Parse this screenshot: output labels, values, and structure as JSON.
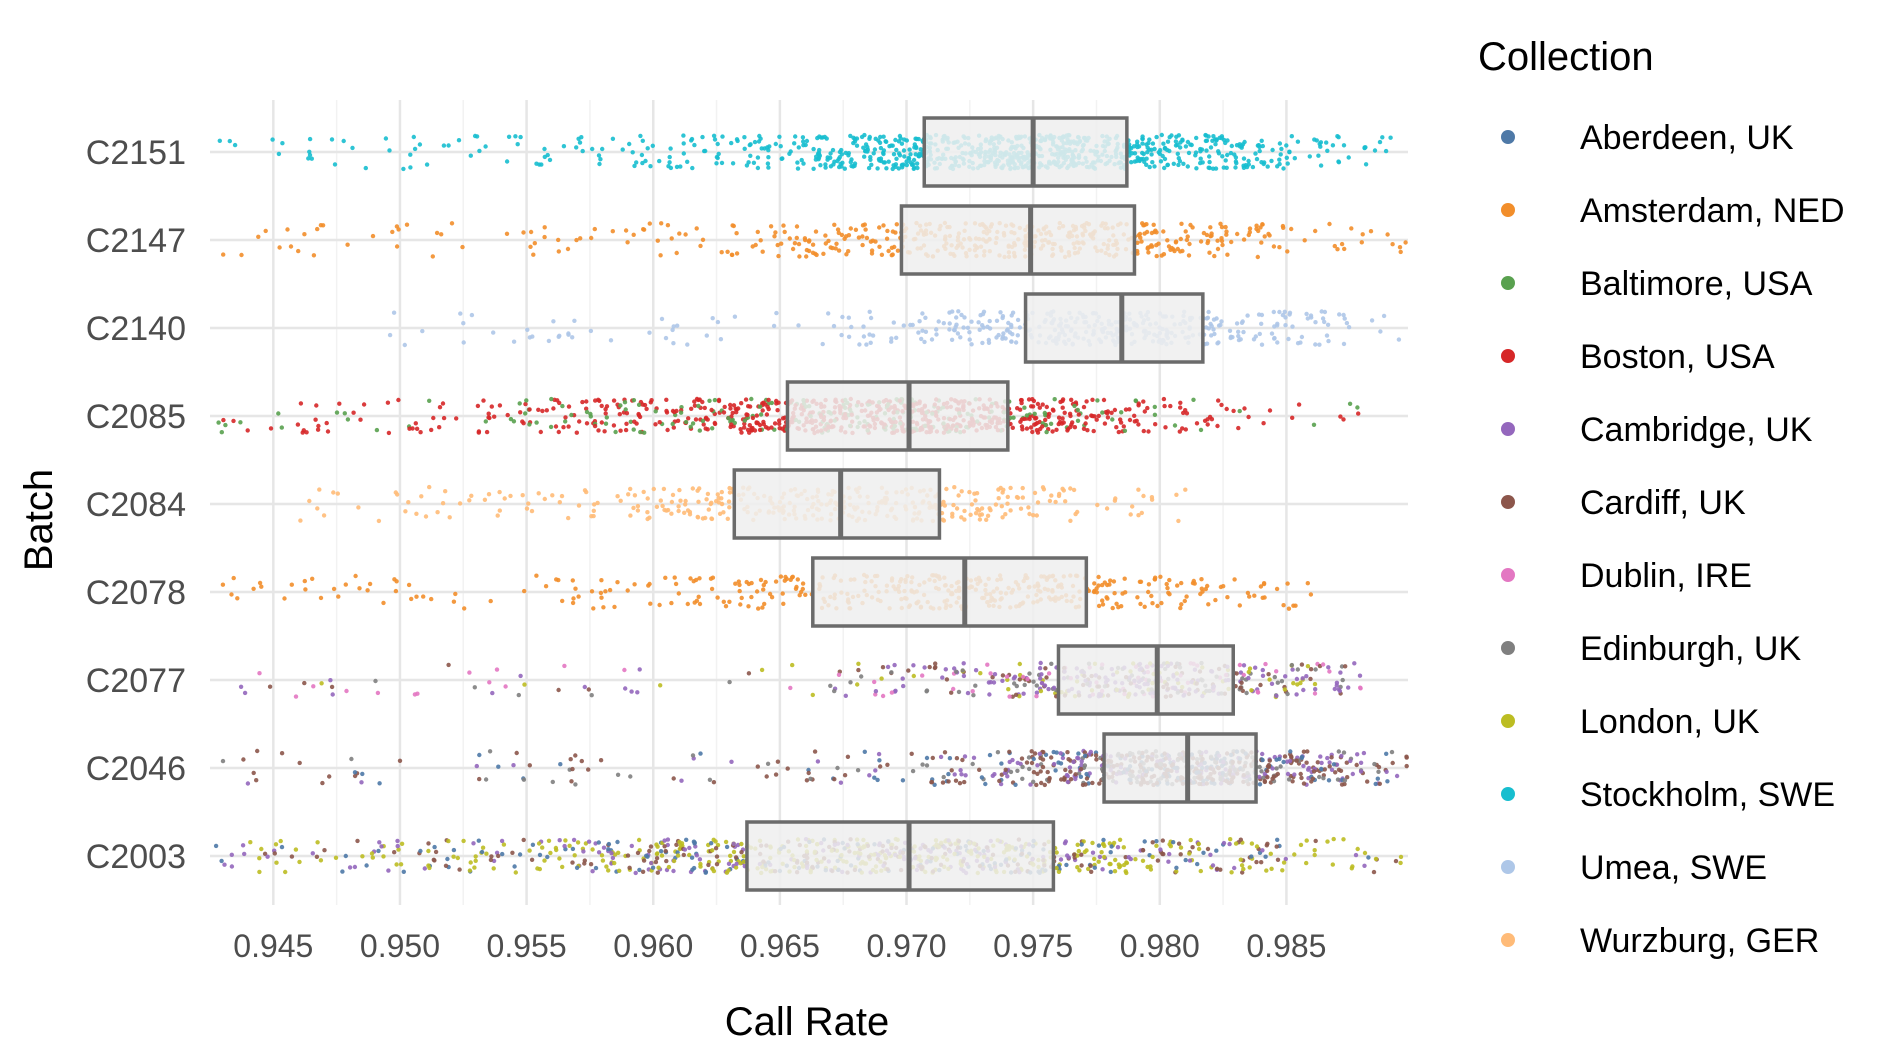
{
  "chart_data": {
    "type": "scatter",
    "subtype": "jittered strip plot with horizontal boxplots",
    "title": "",
    "xlabel": "Call Rate",
    "ylabel": "Batch",
    "xlim": [
      0.9425,
      0.9898
    ],
    "x_ticks": [
      0.945,
      0.95,
      0.955,
      0.96,
      0.965,
      0.97,
      0.975,
      0.98,
      0.985
    ],
    "x_tick_labels": [
      "0.945",
      "0.950",
      "0.955",
      "0.960",
      "0.965",
      "0.970",
      "0.975",
      "0.980",
      "0.985"
    ],
    "categories": [
      "C2151",
      "C2147",
      "C2140",
      "C2085",
      "C2084",
      "C2078",
      "C2077",
      "C2046",
      "C2003"
    ],
    "grid": true,
    "legend": {
      "title": "Collection",
      "position": "right",
      "entries": [
        {
          "name": "Aberdeen, UK",
          "color": "#4e79a7"
        },
        {
          "name": "Amsterdam, NED",
          "color": "#f28e2b"
        },
        {
          "name": "Baltimore, USA",
          "color": "#59a14f"
        },
        {
          "name": "Boston, USA",
          "color": "#d62728"
        },
        {
          "name": "Cambridge, UK",
          "color": "#9467bd"
        },
        {
          "name": "Cardiff, UK",
          "color": "#8c564b"
        },
        {
          "name": "Dublin, IRE",
          "color": "#e377c2"
        },
        {
          "name": "Edinburgh, UK",
          "color": "#7f7f7f"
        },
        {
          "name": "London, UK",
          "color": "#bcbd22"
        },
        {
          "name": "Stockholm, SWE",
          "color": "#17becf"
        },
        {
          "name": "Umea, SWE",
          "color": "#aec7e8"
        },
        {
          "name": "Wurzburg, GER",
          "color": "#ffbb78"
        }
      ]
    },
    "series": [
      {
        "batch": "C2151",
        "q1": 0.9707,
        "median": 0.975,
        "q3": 0.9787,
        "min": 0.9428,
        "max": 0.9898,
        "density": 1.0,
        "collections": [
          "Stockholm, SWE"
        ]
      },
      {
        "batch": "C2147",
        "q1": 0.9698,
        "median": 0.9749,
        "q3": 0.979,
        "min": 0.943,
        "max": 0.9898,
        "density": 0.55,
        "collections": [
          "Amsterdam, NED"
        ]
      },
      {
        "batch": "C2140",
        "q1": 0.9747,
        "median": 0.9785,
        "q3": 0.9817,
        "min": 0.949,
        "max": 0.9895,
        "density": 0.45,
        "collections": [
          "Umea, SWE"
        ]
      },
      {
        "batch": "C2085",
        "q1": 0.9653,
        "median": 0.9701,
        "q3": 0.974,
        "min": 0.9425,
        "max": 0.988,
        "density": 1.0,
        "collections": [
          "Boston, USA",
          "Baltimore, USA"
        ]
      },
      {
        "batch": "C2084",
        "q1": 0.9632,
        "median": 0.9674,
        "q3": 0.9713,
        "min": 0.9445,
        "max": 0.9815,
        "density": 0.4,
        "collections": [
          "Wurzburg, GER"
        ]
      },
      {
        "batch": "C2078",
        "q1": 0.9663,
        "median": 0.9723,
        "q3": 0.9771,
        "min": 0.943,
        "max": 0.9865,
        "density": 0.5,
        "collections": [
          "Amsterdam, NED"
        ]
      },
      {
        "batch": "C2077",
        "q1": 0.976,
        "median": 0.9799,
        "q3": 0.9829,
        "min": 0.9428,
        "max": 0.988,
        "density": 0.55,
        "collections": [
          "Cambridge, UK",
          "Cardiff, UK",
          "Dublin, IRE",
          "Edinburgh, UK",
          "London, UK"
        ]
      },
      {
        "batch": "C2046",
        "q1": 0.9778,
        "median": 0.9811,
        "q3": 0.9838,
        "min": 0.9428,
        "max": 0.9898,
        "density": 0.85,
        "collections": [
          "Cardiff, UK",
          "Cambridge, UK",
          "Aberdeen, UK",
          "Edinburgh, UK"
        ]
      },
      {
        "batch": "C2003",
        "q1": 0.9637,
        "median": 0.9701,
        "q3": 0.9758,
        "min": 0.9425,
        "max": 0.9898,
        "density": 1.0,
        "collections": [
          "London, UK",
          "Cardiff, UK",
          "Cambridge, UK",
          "Aberdeen, UK"
        ]
      }
    ]
  }
}
